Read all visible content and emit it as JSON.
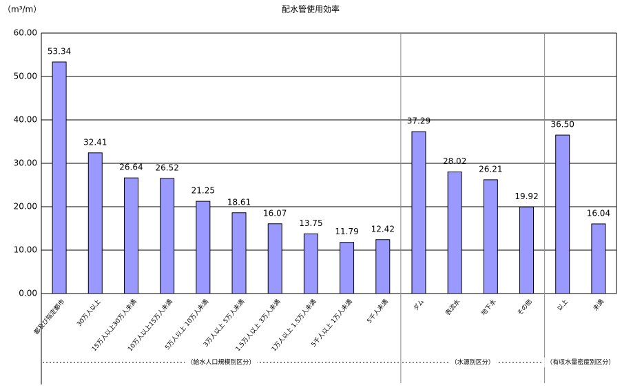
{
  "chart_data": {
    "type": "bar",
    "title": "配水管使用効率",
    "y_unit": "（m³/m）",
    "categories": [
      "都及び指定都市",
      "30万人以上",
      "15万人以上30万人未満",
      "10万人以上15万人未満",
      "5万人以上 10万人未満",
      "3万人以上 5万人未満",
      "1.5万人以上 3万人未満",
      "1万人以上 1.5万人未満",
      "5千人以上 1万人未満",
      "5千人未満",
      "ダム",
      "表流水",
      "地下水",
      "その他",
      "以上",
      "未満"
    ],
    "values": [
      53.34,
      32.41,
      26.64,
      26.52,
      21.25,
      18.61,
      16.07,
      13.75,
      11.79,
      12.42,
      37.29,
      28.02,
      26.21,
      19.92,
      36.5,
      16.04
    ],
    "value_labels": [
      "53.34",
      "32.41",
      "26.64",
      "26.52",
      "21.25",
      "18.61",
      "16.07",
      "13.75",
      "11.79",
      "12.42",
      "37.29",
      "28.02",
      "26.21",
      "19.92",
      "36.50",
      "16.04"
    ],
    "color": "#9999ff",
    "ylim": [
      0,
      60
    ],
    "yticks": [
      {
        "value": 0,
        "label": "0.00"
      },
      {
        "value": 10,
        "label": "10.00"
      },
      {
        "value": 20,
        "label": "20.00"
      },
      {
        "value": 30,
        "label": "30.00"
      },
      {
        "value": 40,
        "label": "40.00"
      },
      {
        "value": 50,
        "label": "50.00"
      },
      {
        "value": 60,
        "label": "60.00"
      }
    ],
    "grid": true,
    "groups": [
      "（給水人口規模別区分）",
      "（水源別区分）",
      "（有収水量密度別区分）"
    ]
  }
}
